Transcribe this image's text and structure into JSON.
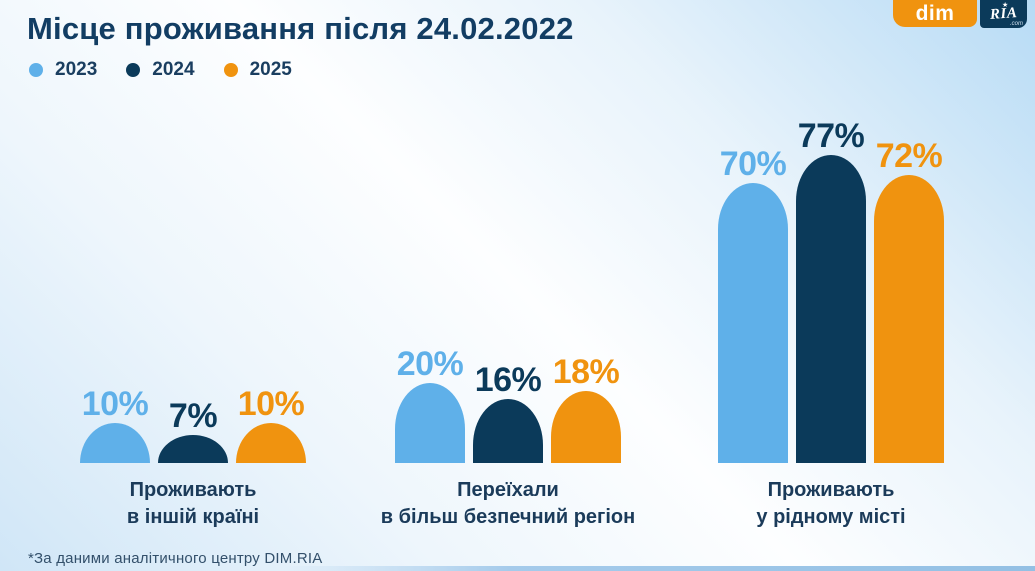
{
  "title": "Місце проживання після 24.02.2022",
  "footnote": "*За даними аналітичного центру DIM.RIA",
  "logo": {
    "dim": "dim",
    "ria": "RIA",
    "com": ".com",
    "star": "★"
  },
  "legend": [
    {
      "label": "2023",
      "color": "#5fb0e9"
    },
    {
      "label": "2024",
      "color": "#0b3a5a"
    },
    {
      "label": "2025",
      "color": "#f0930f"
    }
  ],
  "chart_data": {
    "type": "bar",
    "title": "Місце проживання після 24.02.2022",
    "categories": [
      "Проживають\nв іншій країні",
      "Переїхали\nв більш безпечний регіон",
      "Проживають\nу рідному місті"
    ],
    "series": [
      {
        "name": "2023",
        "color": "#5fb0e9",
        "values": [
          10,
          20,
          70
        ]
      },
      {
        "name": "2024",
        "color": "#0b3a5a",
        "values": [
          7,
          16,
          77
        ]
      },
      {
        "name": "2025",
        "color": "#f0930f",
        "values": [
          10,
          18,
          72
        ]
      }
    ],
    "value_suffix": "%",
    "ylim": [
      0,
      100
    ],
    "grid": false,
    "legend_position": "top-left",
    "source_note": "*За даними аналітичного центру DIM.RIA"
  }
}
